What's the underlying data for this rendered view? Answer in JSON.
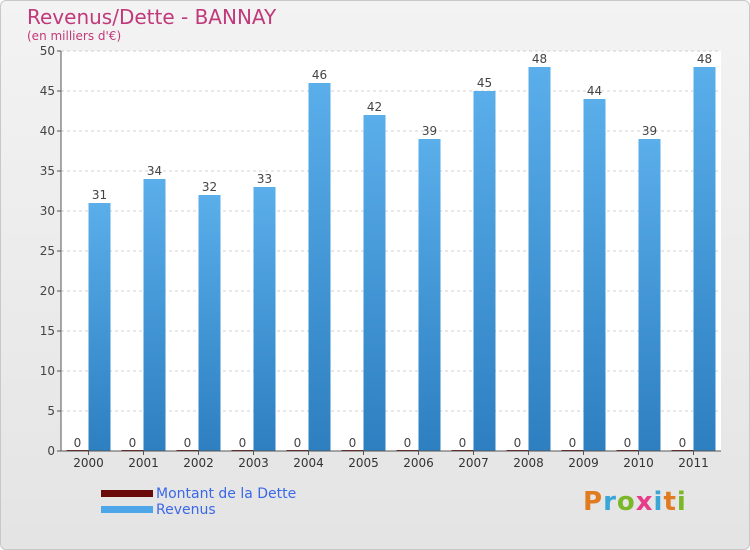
{
  "title": "Revenus/Dette - BANNAY",
  "subtitle": "(en milliers d'€)",
  "logo_text": "Proxiti",
  "colors": {
    "dette": "#6b0a0a",
    "revenus": "#4da6e8",
    "title": "#c0397a",
    "legend_text": "#3b68e8"
  },
  "chart_data": {
    "type": "bar",
    "title": "Revenus/Dette - BANNAY",
    "subtitle": "(en milliers d'€)",
    "categories": [
      "2000",
      "2001",
      "2002",
      "2003",
      "2004",
      "2005",
      "2006",
      "2007",
      "2008",
      "2009",
      "2010",
      "2011"
    ],
    "series": [
      {
        "name": "Montant de la Dette",
        "values": [
          0,
          0,
          0,
          0,
          0,
          0,
          0,
          0,
          0,
          0,
          0,
          0
        ]
      },
      {
        "name": "Revenus",
        "values": [
          31,
          34,
          32,
          33,
          46,
          42,
          39,
          45,
          48,
          44,
          39,
          48
        ]
      }
    ],
    "ylim": [
      0,
      50
    ],
    "yticks": [
      0,
      5,
      10,
      15,
      20,
      25,
      30,
      35,
      40,
      45,
      50
    ],
    "grid": true,
    "legend": "bottom-left"
  }
}
